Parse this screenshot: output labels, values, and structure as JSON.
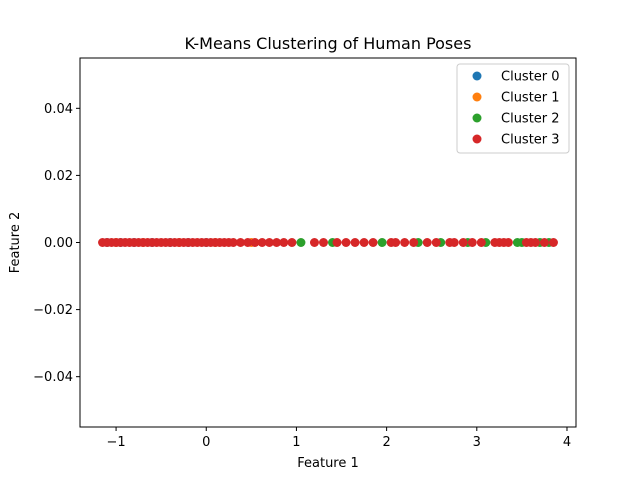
{
  "chart_data": {
    "type": "scatter",
    "title": "K-Means Clustering of Human Poses",
    "xlabel": "Feature 1",
    "ylabel": "Feature 2",
    "xlim": [
      -1.4,
      4.1
    ],
    "ylim": [
      -0.055,
      0.055
    ],
    "xticks": [
      -1,
      0,
      1,
      2,
      3,
      4
    ],
    "xtick_labels": [
      "−1",
      "0",
      "1",
      "2",
      "3",
      "4"
    ],
    "yticks": [
      -0.04,
      -0.02,
      0.0,
      0.02,
      0.04
    ],
    "ytick_labels": [
      "−0.04",
      "−0.02",
      "0.00",
      "0.02",
      "0.04"
    ],
    "grid": false,
    "legend_position": "top-right",
    "series": [
      {
        "name": "Cluster 0",
        "color": "#1f77b4",
        "x": [
          -1.1,
          -0.95,
          -0.8,
          -0.6,
          -0.4,
          -0.2,
          0.0
        ],
        "y": [
          0,
          0,
          0,
          0,
          0,
          0,
          0
        ]
      },
      {
        "name": "Cluster 1",
        "color": "#ff7f0e",
        "x": [
          -1.0,
          -0.7,
          -0.3,
          0.1,
          0.5
        ],
        "y": [
          0,
          0,
          0,
          0,
          0
        ]
      },
      {
        "name": "Cluster 2",
        "color": "#2ca02c",
        "x": [
          1.05,
          1.4,
          1.95,
          2.35,
          2.6,
          2.9,
          3.1,
          3.45,
          3.5,
          3.7,
          3.8
        ],
        "y": [
          0,
          0,
          0,
          0,
          0,
          0,
          0,
          0,
          0,
          0,
          0
        ]
      },
      {
        "name": "Cluster 3",
        "color": "#d62728",
        "x": [
          -1.15,
          -1.1,
          -1.05,
          -1.0,
          -0.95,
          -0.9,
          -0.85,
          -0.8,
          -0.75,
          -0.7,
          -0.65,
          -0.6,
          -0.55,
          -0.5,
          -0.45,
          -0.4,
          -0.35,
          -0.3,
          -0.25,
          -0.2,
          -0.15,
          -0.1,
          -0.05,
          0.0,
          0.05,
          0.1,
          0.15,
          0.2,
          0.25,
          0.3,
          0.38,
          0.46,
          0.54,
          0.62,
          0.7,
          0.78,
          0.86,
          0.95,
          1.2,
          1.3,
          1.45,
          1.55,
          1.65,
          1.75,
          1.85,
          2.05,
          2.1,
          2.2,
          2.3,
          2.45,
          2.55,
          2.7,
          2.75,
          2.85,
          2.95,
          3.05,
          3.2,
          3.25,
          3.3,
          3.35,
          3.55,
          3.6,
          3.65,
          3.75,
          3.85
        ],
        "y": [
          0,
          0,
          0,
          0,
          0,
          0,
          0,
          0,
          0,
          0,
          0,
          0,
          0,
          0,
          0,
          0,
          0,
          0,
          0,
          0,
          0,
          0,
          0,
          0,
          0,
          0,
          0,
          0,
          0,
          0,
          0,
          0,
          0,
          0,
          0,
          0,
          0,
          0,
          0,
          0,
          0,
          0,
          0,
          0,
          0,
          0,
          0,
          0,
          0,
          0,
          0,
          0,
          0,
          0,
          0,
          0,
          0,
          0,
          0,
          0,
          0,
          0,
          0,
          0,
          0
        ]
      }
    ]
  }
}
